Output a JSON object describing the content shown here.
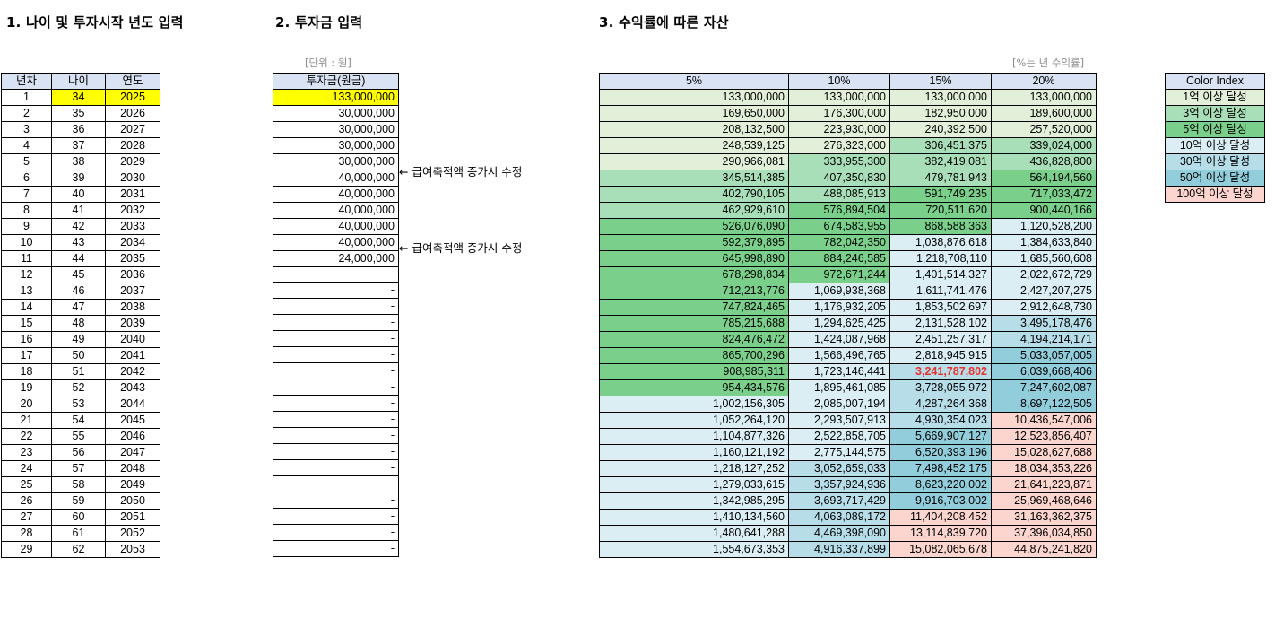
{
  "titles": {
    "section1": "1. 나이 및 투자시작 년도 입력",
    "section2": "2. 투자금 입력",
    "section3": "3. 수익률에 따른 자산"
  },
  "notes": {
    "unit": "[단위 : 원]",
    "rate": "[%는 년 수익률]"
  },
  "age_table": {
    "headers": [
      "년차",
      "나이",
      "연도"
    ],
    "rows": [
      [
        "1",
        "34",
        "2025"
      ],
      [
        "2",
        "35",
        "2026"
      ],
      [
        "3",
        "36",
        "2027"
      ],
      [
        "4",
        "37",
        "2028"
      ],
      [
        "5",
        "38",
        "2029"
      ],
      [
        "6",
        "39",
        "2030"
      ],
      [
        "7",
        "40",
        "2031"
      ],
      [
        "8",
        "41",
        "2032"
      ],
      [
        "9",
        "42",
        "2033"
      ],
      [
        "10",
        "43",
        "2034"
      ],
      [
        "11",
        "44",
        "2035"
      ],
      [
        "12",
        "45",
        "2036"
      ],
      [
        "13",
        "46",
        "2037"
      ],
      [
        "14",
        "47",
        "2038"
      ],
      [
        "15",
        "48",
        "2039"
      ],
      [
        "16",
        "49",
        "2040"
      ],
      [
        "17",
        "50",
        "2041"
      ],
      [
        "18",
        "51",
        "2042"
      ],
      [
        "19",
        "52",
        "2043"
      ],
      [
        "20",
        "53",
        "2044"
      ],
      [
        "21",
        "54",
        "2045"
      ],
      [
        "22",
        "55",
        "2046"
      ],
      [
        "23",
        "56",
        "2047"
      ],
      [
        "24",
        "57",
        "2048"
      ],
      [
        "25",
        "58",
        "2049"
      ],
      [
        "26",
        "59",
        "2050"
      ],
      [
        "27",
        "60",
        "2051"
      ],
      [
        "28",
        "61",
        "2052"
      ],
      [
        "29",
        "62",
        "2053"
      ]
    ]
  },
  "invest_table": {
    "header": "투자금(원금)",
    "values": [
      "133,000,000",
      "30,000,000",
      "30,000,000",
      "30,000,000",
      "30,000,000",
      "40,000,000",
      "40,000,000",
      "40,000,000",
      "40,000,000",
      "40,000,000",
      "24,000,000",
      "",
      "-",
      "-",
      "-",
      "-",
      "-",
      "-",
      "-",
      "-",
      "-",
      "-",
      "-",
      "-",
      "-",
      "-",
      "-",
      "-",
      "-"
    ],
    "notes": [
      {
        "row": 5,
        "text": "← 급여축적액 증가시 수정"
      },
      {
        "row": 10,
        "text": "← 급여축적액 증가시 수정"
      }
    ]
  },
  "asset_table": {
    "headers": [
      "5%",
      "10%",
      "15%",
      "20%"
    ],
    "highlight": {
      "row": 17,
      "col": 2
    },
    "rows": [
      [
        "133,000,000",
        "133,000,000",
        "133,000,000",
        "133,000,000"
      ],
      [
        "169,650,000",
        "176,300,000",
        "182,950,000",
        "189,600,000"
      ],
      [
        "208,132,500",
        "223,930,000",
        "240,392,500",
        "257,520,000"
      ],
      [
        "248,539,125",
        "276,323,000",
        "306,451,375",
        "339,024,000"
      ],
      [
        "290,966,081",
        "333,955,300",
        "382,419,081",
        "436,828,800"
      ],
      [
        "345,514,385",
        "407,350,830",
        "479,781,943",
        "564,194,560"
      ],
      [
        "402,790,105",
        "488,085,913",
        "591,749,235",
        "717,033,472"
      ],
      [
        "462,929,610",
        "576,894,504",
        "720,511,620",
        "900,440,166"
      ],
      [
        "526,076,090",
        "674,583,955",
        "868,588,363",
        "1,120,528,200"
      ],
      [
        "592,379,895",
        "782,042,350",
        "1,038,876,618",
        "1,384,633,840"
      ],
      [
        "645,998,890",
        "884,246,585",
        "1,218,708,110",
        "1,685,560,608"
      ],
      [
        "678,298,834",
        "972,671,244",
        "1,401,514,327",
        "2,022,672,729"
      ],
      [
        "712,213,776",
        "1,069,938,368",
        "1,611,741,476",
        "2,427,207,275"
      ],
      [
        "747,824,465",
        "1,176,932,205",
        "1,853,502,697",
        "2,912,648,730"
      ],
      [
        "785,215,688",
        "1,294,625,425",
        "2,131,528,102",
        "3,495,178,476"
      ],
      [
        "824,476,472",
        "1,424,087,968",
        "2,451,257,317",
        "4,194,214,171"
      ],
      [
        "865,700,296",
        "1,566,496,765",
        "2,818,945,915",
        "5,033,057,005"
      ],
      [
        "908,985,311",
        "1,723,146,441",
        "3,241,787,802",
        "6,039,668,406"
      ],
      [
        "954,434,576",
        "1,895,461,085",
        "3,728,055,972",
        "7,247,602,087"
      ],
      [
        "1,002,156,305",
        "2,085,007,194",
        "4,287,264,368",
        "8,697,122,505"
      ],
      [
        "1,052,264,120",
        "2,293,507,913",
        "4,930,354,023",
        "10,436,547,006"
      ],
      [
        "1,104,877,326",
        "2,522,858,705",
        "5,669,907,127",
        "12,523,856,407"
      ],
      [
        "1,160,121,192",
        "2,775,144,575",
        "6,520,393,196",
        "15,028,627,688"
      ],
      [
        "1,218,127,252",
        "3,052,659,033",
        "7,498,452,175",
        "18,034,353,226"
      ],
      [
        "1,279,033,615",
        "3,357,924,936",
        "8,623,220,002",
        "21,641,223,871"
      ],
      [
        "1,342,985,295",
        "3,693,717,429",
        "9,916,703,002",
        "25,969,468,646"
      ],
      [
        "1,410,134,560",
        "4,063,089,172",
        "11,404,208,452",
        "31,163,362,375"
      ],
      [
        "1,480,641,288",
        "4,469,398,090",
        "13,114,839,720",
        "37,396,034,850"
      ],
      [
        "1,554,673,353",
        "4,916,337,899",
        "15,082,065,678",
        "44,875,241,820"
      ]
    ]
  },
  "color_index": {
    "title": "Color Index",
    "items": [
      {
        "label": "1억 이상 달성",
        "color": "#e2f0d9",
        "threshold": 100000000
      },
      {
        "label": "3억 이상 달성",
        "color": "#a9dfb8",
        "threshold": 300000000
      },
      {
        "label": "5억 이상 달성",
        "color": "#7ad08b",
        "threshold": 500000000
      },
      {
        "label": "10억 이상 달성",
        "color": "#daeef3",
        "threshold": 1000000000
      },
      {
        "label": "30억 이상 달성",
        "color": "#b6dde8",
        "threshold": 3000000000
      },
      {
        "label": "50억 이상 달성",
        "color": "#92cddc",
        "threshold": 5000000000
      },
      {
        "label": "100억 이상 달성",
        "color": "#fcd5cf",
        "threshold": 10000000000
      }
    ]
  }
}
